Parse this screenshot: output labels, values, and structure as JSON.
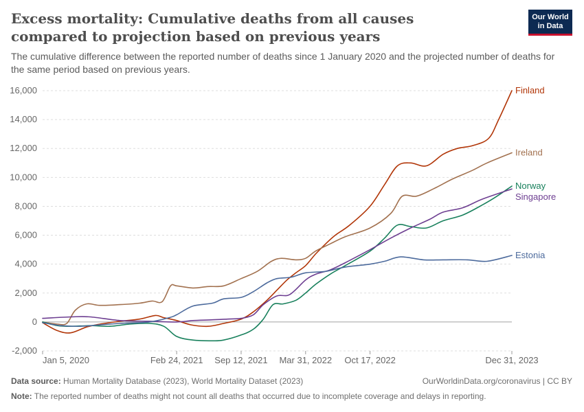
{
  "header": {
    "title": "Excess mortality: Cumulative deaths from all causes compared to projection based on previous years",
    "subtitle": "The cumulative difference between the reported number of deaths since 1 January 2020 and the projected number of deaths for the same period based on previous years.",
    "logo_line1": "Our World",
    "logo_line2": "in Data"
  },
  "footer": {
    "source_label": "Data source:",
    "source_text": "Human Mortality Database (2023), World Mortality Dataset (2023)",
    "note_label": "Note:",
    "note_text": "The reported number of deaths might not count all deaths that occurred due to incomplete coverage and delays in reporting.",
    "credit": "OurWorldinData.org/coronavirus | CC BY"
  },
  "chart_data": {
    "type": "line",
    "title": "Excess mortality: Cumulative deaths from all causes compared to projection based on previous years",
    "x_ticks": [
      "2020-01-05",
      "2021-02-24",
      "2021-09-12",
      "2022-03-31",
      "2022-10-17",
      "2023-12-31"
    ],
    "x_tick_labels": [
      "Jan 5, 2020",
      "Feb 24, 2021",
      "Sep 12, 2021",
      "Mar 31, 2022",
      "Oct 17, 2022",
      "Dec 31, 2023"
    ],
    "xlim": [
      "2020-01-05",
      "2023-12-31"
    ],
    "ylim": [
      -2000,
      16000
    ],
    "y_ticks": [
      -2000,
      0,
      2000,
      4000,
      6000,
      8000,
      10000,
      12000,
      14000,
      16000
    ],
    "y_tick_labels": [
      "-2,000",
      "0",
      "2,000",
      "4,000",
      "6,000",
      "8,000",
      "10,000",
      "12,000",
      "14,000",
      "16,000"
    ],
    "grid": "horizontal-dashed",
    "legend": "inline-right",
    "series": [
      {
        "name": "Finland",
        "color": "#b13507",
        "points": [
          [
            "2020-01-05",
            -50
          ],
          [
            "2020-02-20",
            -600
          ],
          [
            "2020-04-01",
            -750
          ],
          [
            "2020-05-20",
            -350
          ],
          [
            "2020-07-01",
            -150
          ],
          [
            "2020-09-01",
            50
          ],
          [
            "2020-11-01",
            200
          ],
          [
            "2020-12-20",
            450
          ],
          [
            "2021-01-15",
            300
          ],
          [
            "2021-02-24",
            100
          ],
          [
            "2021-04-10",
            -200
          ],
          [
            "2021-06-01",
            -300
          ],
          [
            "2021-07-20",
            -100
          ],
          [
            "2021-09-12",
            200
          ],
          [
            "2021-10-20",
            700
          ],
          [
            "2021-12-01",
            1500
          ],
          [
            "2022-01-01",
            2200
          ],
          [
            "2022-02-01",
            2900
          ],
          [
            "2022-03-01",
            3400
          ],
          [
            "2022-03-31",
            3900
          ],
          [
            "2022-05-01",
            4700
          ],
          [
            "2022-06-01",
            5400
          ],
          [
            "2022-07-01",
            6000
          ],
          [
            "2022-08-15",
            6700
          ],
          [
            "2022-10-17",
            8000
          ],
          [
            "2022-12-01",
            9500
          ],
          [
            "2023-01-10",
            10800
          ],
          [
            "2023-02-20",
            11000
          ],
          [
            "2023-04-10",
            10800
          ],
          [
            "2023-06-01",
            11600
          ],
          [
            "2023-07-15",
            12000
          ],
          [
            "2023-09-01",
            12200
          ],
          [
            "2023-10-20",
            12700
          ],
          [
            "2023-11-20",
            14000
          ],
          [
            "2023-12-31",
            16000
          ]
        ]
      },
      {
        "name": "Ireland",
        "color": "#a2714f",
        "points": [
          [
            "2020-01-05",
            0
          ],
          [
            "2020-02-20",
            -150
          ],
          [
            "2020-03-20",
            -100
          ],
          [
            "2020-04-15",
            800
          ],
          [
            "2020-05-20",
            1250
          ],
          [
            "2020-07-01",
            1150
          ],
          [
            "2020-09-01",
            1200
          ],
          [
            "2020-11-01",
            1300
          ],
          [
            "2020-12-10",
            1450
          ],
          [
            "2021-01-10",
            1400
          ],
          [
            "2021-02-05",
            2500
          ],
          [
            "2021-02-24",
            2500
          ],
          [
            "2021-04-15",
            2350
          ],
          [
            "2021-06-01",
            2450
          ],
          [
            "2021-07-20",
            2500
          ],
          [
            "2021-09-12",
            3000
          ],
          [
            "2021-11-01",
            3500
          ],
          [
            "2021-12-15",
            4200
          ],
          [
            "2022-01-15",
            4400
          ],
          [
            "2022-03-01",
            4300
          ],
          [
            "2022-03-31",
            4400
          ],
          [
            "2022-05-01",
            4900
          ],
          [
            "2022-06-15",
            5400
          ],
          [
            "2022-08-01",
            5900
          ],
          [
            "2022-10-17",
            6500
          ],
          [
            "2022-12-20",
            7500
          ],
          [
            "2023-01-25",
            8700
          ],
          [
            "2023-03-10",
            8700
          ],
          [
            "2023-05-01",
            9200
          ],
          [
            "2023-07-01",
            9900
          ],
          [
            "2023-09-01",
            10500
          ],
          [
            "2023-10-15",
            11000
          ],
          [
            "2023-12-31",
            11700
          ]
        ]
      },
      {
        "name": "Norway",
        "color": "#18805c",
        "points": [
          [
            "2020-01-05",
            0
          ],
          [
            "2020-02-20",
            -250
          ],
          [
            "2020-04-01",
            -300
          ],
          [
            "2020-06-01",
            -250
          ],
          [
            "2020-08-01",
            -300
          ],
          [
            "2020-10-01",
            -150
          ],
          [
            "2020-12-01",
            -100
          ],
          [
            "2021-01-15",
            -300
          ],
          [
            "2021-02-24",
            -1000
          ],
          [
            "2021-04-15",
            -1250
          ],
          [
            "2021-06-15",
            -1300
          ],
          [
            "2021-07-20",
            -1250
          ],
          [
            "2021-09-12",
            -900
          ],
          [
            "2021-10-20",
            -500
          ],
          [
            "2021-11-20",
            200
          ],
          [
            "2021-12-20",
            1200
          ],
          [
            "2022-01-20",
            1250
          ],
          [
            "2022-03-01",
            1500
          ],
          [
            "2022-03-31",
            2000
          ],
          [
            "2022-05-01",
            2600
          ],
          [
            "2022-06-15",
            3300
          ],
          [
            "2022-08-01",
            3900
          ],
          [
            "2022-10-17",
            4900
          ],
          [
            "2022-12-01",
            5800
          ],
          [
            "2023-01-10",
            6700
          ],
          [
            "2023-02-20",
            6600
          ],
          [
            "2023-04-10",
            6500
          ],
          [
            "2023-06-01",
            7000
          ],
          [
            "2023-08-01",
            7400
          ],
          [
            "2023-10-01",
            8100
          ],
          [
            "2023-11-15",
            8700
          ],
          [
            "2023-12-31",
            9400
          ]
        ]
      },
      {
        "name": "Singapore",
        "color": "#6d3e91",
        "points": [
          [
            "2020-01-05",
            250
          ],
          [
            "2020-04-01",
            350
          ],
          [
            "2020-06-01",
            350
          ],
          [
            "2020-09-01",
            100
          ],
          [
            "2020-12-01",
            50
          ],
          [
            "2021-02-24",
            0
          ],
          [
            "2021-04-15",
            100
          ],
          [
            "2021-06-15",
            150
          ],
          [
            "2021-08-01",
            200
          ],
          [
            "2021-09-12",
            250
          ],
          [
            "2021-10-20",
            500
          ],
          [
            "2021-11-20",
            1200
          ],
          [
            "2022-01-01",
            1800
          ],
          [
            "2022-02-10",
            1900
          ],
          [
            "2022-03-31",
            2900
          ],
          [
            "2022-05-01",
            3300
          ],
          [
            "2022-06-15",
            3600
          ],
          [
            "2022-08-01",
            4100
          ],
          [
            "2022-10-17",
            5000
          ],
          [
            "2022-12-20",
            5800
          ],
          [
            "2023-02-20",
            6500
          ],
          [
            "2023-04-20",
            7100
          ],
          [
            "2023-06-01",
            7600
          ],
          [
            "2023-08-01",
            7900
          ],
          [
            "2023-10-01",
            8500
          ],
          [
            "2023-12-31",
            9200
          ]
        ]
      },
      {
        "name": "Estonia",
        "color": "#4c6a9c",
        "points": [
          [
            "2020-01-05",
            -50
          ],
          [
            "2020-03-01",
            -250
          ],
          [
            "2020-05-01",
            -300
          ],
          [
            "2020-07-01",
            -200
          ],
          [
            "2020-09-01",
            -100
          ],
          [
            "2020-12-01",
            0
          ],
          [
            "2021-02-01",
            300
          ],
          [
            "2021-02-24",
            500
          ],
          [
            "2021-04-15",
            1100
          ],
          [
            "2021-06-15",
            1300
          ],
          [
            "2021-07-20",
            1600
          ],
          [
            "2021-09-12",
            1700
          ],
          [
            "2021-10-20",
            2100
          ],
          [
            "2021-12-01",
            2700
          ],
          [
            "2022-01-01",
            3000
          ],
          [
            "2022-02-15",
            3100
          ],
          [
            "2022-03-31",
            3400
          ],
          [
            "2022-06-01",
            3500
          ],
          [
            "2022-08-01",
            3800
          ],
          [
            "2022-10-17",
            4000
          ],
          [
            "2022-12-01",
            4200
          ],
          [
            "2023-01-20",
            4500
          ],
          [
            "2023-04-01",
            4300
          ],
          [
            "2023-06-01",
            4300
          ],
          [
            "2023-08-15",
            4300
          ],
          [
            "2023-10-15",
            4200
          ],
          [
            "2023-12-31",
            4600
          ]
        ]
      }
    ]
  }
}
